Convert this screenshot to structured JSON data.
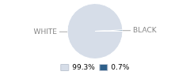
{
  "chart_data": {
    "type": "pie",
    "categories": [
      "WHITE",
      "BLACK"
    ],
    "values": [
      99.3,
      0.7
    ],
    "value_labels": [
      "99.3%",
      "0.7%"
    ],
    "colors": [
      "#d6dde8",
      "#2e5f8a"
    ],
    "legend": "bottom"
  }
}
